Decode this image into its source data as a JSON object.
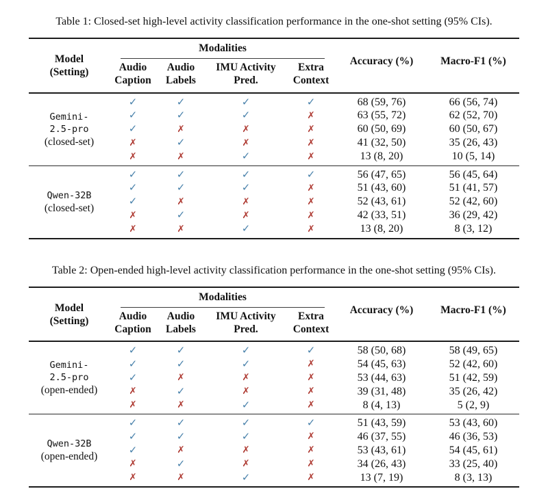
{
  "glyphs": {
    "check": "✓",
    "cross": "✗"
  },
  "colors": {
    "check": "#4a82ab",
    "cross": "#ae3a32",
    "rule": "#1b1b1b",
    "text": "#111111"
  },
  "tables": [
    {
      "caption": "Table 1: Closed-set high-level activity classification performance in the one-shot setting (95% CIs).",
      "header": {
        "model": "Model\n(Setting)",
        "modalities": "Modalities",
        "subcolumns": [
          "Audio\nCaption",
          "Audio\nLabels",
          "IMU Activity\nPred.",
          "Extra\nContext"
        ],
        "accuracy": "Accuracy (%)",
        "macro_f1": "Macro-F1 (%)"
      },
      "groups": [
        {
          "model_lines": [
            "Gemini-",
            "2.5-pro"
          ],
          "setting": "(closed-set)",
          "rows": [
            {
              "marks": [
                true,
                true,
                true,
                true
              ],
              "accuracy": "68 (59, 76)",
              "macro_f1": "66 (56, 74)"
            },
            {
              "marks": [
                true,
                true,
                true,
                false
              ],
              "accuracy": "63 (55, 72)",
              "macro_f1": "62 (52, 70)"
            },
            {
              "marks": [
                true,
                false,
                false,
                false
              ],
              "accuracy": "60 (50, 69)",
              "macro_f1": "60 (50, 67)"
            },
            {
              "marks": [
                false,
                true,
                false,
                false
              ],
              "accuracy": "41 (32, 50)",
              "macro_f1": "35 (26, 43)"
            },
            {
              "marks": [
                false,
                false,
                true,
                false
              ],
              "accuracy": "13 (8, 20)",
              "macro_f1": "10 (5, 14)"
            }
          ]
        },
        {
          "model_lines": [
            "Qwen-32B"
          ],
          "setting": "(closed-set)",
          "rows": [
            {
              "marks": [
                true,
                true,
                true,
                true
              ],
              "accuracy": "56 (47, 65)",
              "macro_f1": "56 (45, 64)"
            },
            {
              "marks": [
                true,
                true,
                true,
                false
              ],
              "accuracy": "51 (43, 60)",
              "macro_f1": "51 (41, 57)"
            },
            {
              "marks": [
                true,
                false,
                false,
                false
              ],
              "accuracy": "52 (43, 61)",
              "macro_f1": "52 (42, 60)"
            },
            {
              "marks": [
                false,
                true,
                false,
                false
              ],
              "accuracy": "42 (33, 51)",
              "macro_f1": "36 (29, 42)"
            },
            {
              "marks": [
                false,
                false,
                true,
                false
              ],
              "accuracy": "13 (8, 20)",
              "macro_f1": "8 (3, 12)"
            }
          ]
        }
      ]
    },
    {
      "caption": "Table 2: Open-ended high-level activity classification performance in the one-shot setting (95% CIs).",
      "header": {
        "model": "Model\n(Setting)",
        "modalities": "Modalities",
        "subcolumns": [
          "Audio\nCaption",
          "Audio\nLabels",
          "IMU Activity\nPred.",
          "Extra\nContext"
        ],
        "accuracy": "Accuracy (%)",
        "macro_f1": "Macro-F1 (%)"
      },
      "groups": [
        {
          "model_lines": [
            "Gemini-",
            "2.5-pro"
          ],
          "setting": "(open-ended)",
          "rows": [
            {
              "marks": [
                true,
                true,
                true,
                true
              ],
              "accuracy": "58 (50, 68)",
              "macro_f1": "58 (49, 65)"
            },
            {
              "marks": [
                true,
                true,
                true,
                false
              ],
              "accuracy": "54 (45, 63)",
              "macro_f1": "52 (42, 60)"
            },
            {
              "marks": [
                true,
                false,
                false,
                false
              ],
              "accuracy": "53 (44, 63)",
              "macro_f1": "51 (42, 59)"
            },
            {
              "marks": [
                false,
                true,
                false,
                false
              ],
              "accuracy": "39 (31, 48)",
              "macro_f1": "35 (26, 42)"
            },
            {
              "marks": [
                false,
                false,
                true,
                false
              ],
              "accuracy": "8 (4, 13)",
              "macro_f1": "5 (2, 9)"
            }
          ]
        },
        {
          "model_lines": [
            "Qwen-32B"
          ],
          "setting": "(open-ended)",
          "rows": [
            {
              "marks": [
                true,
                true,
                true,
                true
              ],
              "accuracy": "51 (43, 59)",
              "macro_f1": "53 (43, 60)"
            },
            {
              "marks": [
                true,
                true,
                true,
                false
              ],
              "accuracy": "46 (37, 55)",
              "macro_f1": "46 (36, 53)"
            },
            {
              "marks": [
                true,
                false,
                false,
                false
              ],
              "accuracy": "53 (43, 61)",
              "macro_f1": "54 (45, 61)"
            },
            {
              "marks": [
                false,
                true,
                false,
                false
              ],
              "accuracy": "34 (26, 43)",
              "macro_f1": "33 (25, 40)"
            },
            {
              "marks": [
                false,
                false,
                true,
                false
              ],
              "accuracy": "13 (7, 19)",
              "macro_f1": "8 (3, 13)"
            }
          ]
        }
      ]
    }
  ]
}
